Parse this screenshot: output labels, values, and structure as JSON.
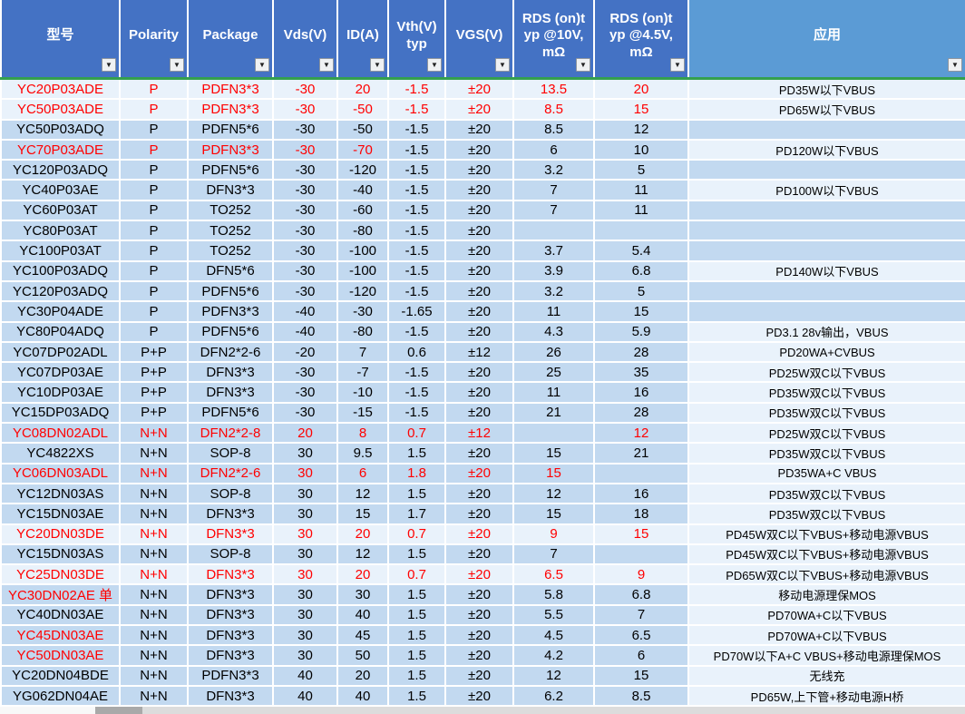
{
  "colors": {
    "header_bg": "#4472C4",
    "header_app_bg": "#5B9BD5",
    "row_bg": "#C2D9F0",
    "row_light_bg": "#E9F2FB",
    "grid_line": "#FFFFFF",
    "header_divider_green": "#34A04E",
    "red_text": "#FF0000",
    "black_text": "#000000"
  },
  "table": {
    "filter_icon": "▼",
    "column_keys": [
      "model",
      "polarity",
      "package",
      "vds",
      "id",
      "vth",
      "vgs",
      "rds10",
      "rds45",
      "app"
    ],
    "columns": [
      {
        "key": "model",
        "label": "型号"
      },
      {
        "key": "polarity",
        "label": "Polarity"
      },
      {
        "key": "package",
        "label": "Package"
      },
      {
        "key": "vds",
        "label": "Vds(V)"
      },
      {
        "key": "id",
        "label": "ID(A)"
      },
      {
        "key": "vth",
        "label": "Vth(V)\ntyp"
      },
      {
        "key": "vgs",
        "label": "VGS(V)"
      },
      {
        "key": "rds10",
        "label": "RDS (on)t\nyp @10V,\nmΩ"
      },
      {
        "key": "rds45",
        "label": "RDS (on)t\nyp @4.5V,\nmΩ"
      },
      {
        "key": "app",
        "label": "应用"
      }
    ],
    "rows": [
      {
        "model": "YC20P03ADE",
        "polarity": "P",
        "package": "PDFN3*3",
        "vds": "-30",
        "id": "20",
        "vth": "-1.5",
        "vgs": "±20",
        "rds10": "13.5",
        "rds45": "20",
        "app": "PD35W以下VBUS",
        "red": [
          0,
          1,
          2,
          3,
          4,
          5,
          6,
          7,
          8
        ],
        "light": true
      },
      {
        "model": "YC50P03ADE",
        "polarity": "P",
        "package": "PDFN3*3",
        "vds": "-30",
        "id": "-50",
        "vth": "-1.5",
        "vgs": "±20",
        "rds10": "8.5",
        "rds45": "15",
        "app": "PD65W以下VBUS",
        "red": [
          0,
          1,
          2,
          3,
          4,
          5,
          6,
          7,
          8
        ],
        "light": true
      },
      {
        "model": "YC50P03ADQ",
        "polarity": "P",
        "package": "PDFN5*6",
        "vds": "-30",
        "id": "-50",
        "vth": "-1.5",
        "vgs": "±20",
        "rds10": "8.5",
        "rds45": "12",
        "app": "",
        "red": [],
        "light": false
      },
      {
        "model": "YC70P03ADE",
        "polarity": "P",
        "package": "PDFN3*3",
        "vds": "-30",
        "id": "-70",
        "vth": "-1.5",
        "vgs": "±20",
        "rds10": "6",
        "rds45": "10",
        "app": "PD120W以下VBUS",
        "red": [
          0,
          1,
          2,
          3,
          4
        ],
        "light": false
      },
      {
        "model": "YC120P03ADQ",
        "polarity": "P",
        "package": "PDFN5*6",
        "vds": "-30",
        "id": "-120",
        "vth": "-1.5",
        "vgs": "±20",
        "rds10": "3.2",
        "rds45": "5",
        "app": "",
        "red": [],
        "light": false
      },
      {
        "model": "YC40P03AE",
        "polarity": "P",
        "package": "DFN3*3",
        "vds": "-30",
        "id": "-40",
        "vth": "-1.5",
        "vgs": "±20",
        "rds10": "7",
        "rds45": "11",
        "app": "PD100W以下VBUS",
        "red": [],
        "light": false
      },
      {
        "model": "YC60P03AT",
        "polarity": "P",
        "package": "TO252",
        "vds": "-30",
        "id": "-60",
        "vth": "-1.5",
        "vgs": "±20",
        "rds10": "7",
        "rds45": "11",
        "app": "",
        "red": [],
        "light": false
      },
      {
        "model": "YC80P03AT",
        "polarity": "P",
        "package": "TO252",
        "vds": "-30",
        "id": "-80",
        "vth": "-1.5",
        "vgs": "±20",
        "rds10": "",
        "rds45": "",
        "app": "",
        "red": [],
        "light": false
      },
      {
        "model": "YC100P03AT",
        "polarity": "P",
        "package": "TO252",
        "vds": "-30",
        "id": "-100",
        "vth": "-1.5",
        "vgs": "±20",
        "rds10": "3.7",
        "rds45": "5.4",
        "app": "",
        "red": [],
        "light": false
      },
      {
        "model": "YC100P03ADQ",
        "polarity": "P",
        "package": "DFN5*6",
        "vds": "-30",
        "id": "-100",
        "vth": "-1.5",
        "vgs": "±20",
        "rds10": "3.9",
        "rds45": "6.8",
        "app": "PD140W以下VBUS",
        "red": [],
        "light": false
      },
      {
        "model": "YC120P03ADQ",
        "polarity": "P",
        "package": "PDFN5*6",
        "vds": "-30",
        "id": "-120",
        "vth": "-1.5",
        "vgs": "±20",
        "rds10": "3.2",
        "rds45": "5",
        "app": "",
        "red": [],
        "light": false
      },
      {
        "model": "YC30P04ADE",
        "polarity": "P",
        "package": "PDFN3*3",
        "vds": "-40",
        "id": "-30",
        "vth": "-1.65",
        "vgs": "±20",
        "rds10": "11",
        "rds45": "15",
        "app": "",
        "red": [],
        "light": false
      },
      {
        "model": "YC80P04ADQ",
        "polarity": "P",
        "package": "PDFN5*6",
        "vds": "-40",
        "id": "-80",
        "vth": "-1.5",
        "vgs": "±20",
        "rds10": "4.3",
        "rds45": "5.9",
        "app": "PD3.1 28v输出，VBUS",
        "red": [],
        "light": false
      },
      {
        "model": "YC07DP02ADL",
        "polarity": "P+P",
        "package": "DFN2*2-6",
        "vds": "-20",
        "id": "7",
        "vth": "0.6",
        "vgs": "±12",
        "rds10": "26",
        "rds45": "28",
        "app": "PD20WA+CVBUS",
        "red": [],
        "light": false
      },
      {
        "model": "YC07DP03AE",
        "polarity": "P+P",
        "package": "DFN3*3",
        "vds": "-30",
        "id": "-7",
        "vth": "-1.5",
        "vgs": "±20",
        "rds10": "25",
        "rds45": "35",
        "app": "PD25W双C以下VBUS",
        "red": [],
        "light": false
      },
      {
        "model": "YC10DP03AE",
        "polarity": "P+P",
        "package": "DFN3*3",
        "vds": "-30",
        "id": "-10",
        "vth": "-1.5",
        "vgs": "±20",
        "rds10": "11",
        "rds45": "16",
        "app": "PD35W双C以下VBUS",
        "red": [],
        "light": false
      },
      {
        "model": "YC15DP03ADQ",
        "polarity": "P+P",
        "package": "PDFN5*6",
        "vds": "-30",
        "id": "-15",
        "vth": "-1.5",
        "vgs": "±20",
        "rds10": "21",
        "rds45": "28",
        "app": "PD35W双C以下VBUS",
        "red": [],
        "light": false
      },
      {
        "model": "YC08DN02ADL",
        "polarity": "N+N",
        "package": "DFN2*2-8",
        "vds": "20",
        "id": "8",
        "vth": "0.7",
        "vgs": "±12",
        "rds10": "",
        "rds45": "12",
        "app": "PD25W双C以下VBUS",
        "red": [
          0,
          1,
          2,
          3,
          4,
          5,
          6,
          7,
          8
        ],
        "light": false
      },
      {
        "model": "YC4822XS",
        "polarity": "N+N",
        "package": "SOP-8",
        "vds": "30",
        "id": "9.5",
        "vth": "1.5",
        "vgs": "±20",
        "rds10": "15",
        "rds45": "21",
        "app": "PD35W双C以下VBUS",
        "red": [],
        "light": false
      },
      {
        "model": "YC06DN03ADL",
        "polarity": "N+N",
        "package": "DFN2*2-6",
        "vds": "30",
        "id": "6",
        "vth": "1.8",
        "vgs": "±20",
        "rds10": "15",
        "rds45": "",
        "app": "PD35WA+C VBUS",
        "red": [
          0,
          1,
          2,
          3,
          4,
          5,
          6,
          7,
          8
        ],
        "light": false
      },
      {
        "model": "YC12DN03AS",
        "polarity": "N+N",
        "package": "SOP-8",
        "vds": "30",
        "id": "12",
        "vth": "1.5",
        "vgs": "±20",
        "rds10": "12",
        "rds45": "16",
        "app": "PD35W双C以下VBUS",
        "red": [],
        "light": false
      },
      {
        "model": "YC15DN03AE",
        "polarity": "N+N",
        "package": "DFN3*3",
        "vds": "30",
        "id": "15",
        "vth": "1.7",
        "vgs": "±20",
        "rds10": "15",
        "rds45": "18",
        "app": "PD35W双C以下VBUS",
        "red": [],
        "light": false
      },
      {
        "model": "YC20DN03DE",
        "polarity": "N+N",
        "package": "DFN3*3",
        "vds": "30",
        "id": "20",
        "vth": "0.7",
        "vgs": "±20",
        "rds10": "9",
        "rds45": "15",
        "app": "PD45W双C以下VBUS+移动电源VBUS",
        "red": [
          0,
          1,
          2,
          3,
          4,
          5,
          6,
          7,
          8
        ],
        "light": true
      },
      {
        "model": "YC15DN03AS",
        "polarity": "N+N",
        "package": "SOP-8",
        "vds": "30",
        "id": "12",
        "vth": "1.5",
        "vgs": "±20",
        "rds10": "7",
        "rds45": "",
        "app": "PD45W双C以下VBUS+移动电源VBUS",
        "red": [],
        "light": false
      },
      {
        "model": "YC25DN03DE",
        "polarity": "N+N",
        "package": "DFN3*3",
        "vds": "30",
        "id": "20",
        "vth": "0.7",
        "vgs": "±20",
        "rds10": "6.5",
        "rds45": "9",
        "app": "PD65W双C以下VBUS+移动电源VBUS",
        "red": [
          0,
          1,
          2,
          3,
          4,
          5,
          6,
          7,
          8
        ],
        "light": true
      },
      {
        "model": "YC30DN02AE 单",
        "polarity": "N+N",
        "package": "DFN3*3",
        "vds": "30",
        "id": "30",
        "vth": "1.5",
        "vgs": "±20",
        "rds10": "5.8",
        "rds45": "6.8",
        "app": "移动电源理保MOS",
        "red": [
          0
        ],
        "light": false
      },
      {
        "model": "YC40DN03AE",
        "polarity": "N+N",
        "package": "DFN3*3",
        "vds": "30",
        "id": "40",
        "vth": "1.5",
        "vgs": "±20",
        "rds10": "5.5",
        "rds45": "7",
        "app": "PD70WA+C以下VBUS",
        "red": [],
        "light": false
      },
      {
        "model": "YC45DN03AE",
        "polarity": "N+N",
        "package": "DFN3*3",
        "vds": "30",
        "id": "45",
        "vth": "1.5",
        "vgs": "±20",
        "rds10": "4.5",
        "rds45": "6.5",
        "app": "PD70WA+C以下VBUS",
        "red": [
          0
        ],
        "light": false
      },
      {
        "model": "YC50DN03AE",
        "polarity": "N+N",
        "package": "DFN3*3",
        "vds": "30",
        "id": "50",
        "vth": "1.5",
        "vgs": "±20",
        "rds10": "4.2",
        "rds45": "6",
        "app": "PD70W以下A+C VBUS+移动电源理保MOS",
        "red": [
          0
        ],
        "light": false
      },
      {
        "model": "YC20DN04BDE",
        "polarity": "N+N",
        "package": "PDFN3*3",
        "vds": "40",
        "id": "20",
        "vth": "1.5",
        "vgs": "±20",
        "rds10": "12",
        "rds45": "15",
        "app": "无线充",
        "red": [],
        "light": false
      },
      {
        "model": "YG062DN04AE",
        "polarity": "N+N",
        "package": "DFN3*3",
        "vds": "40",
        "id": "40",
        "vth": "1.5",
        "vgs": "±20",
        "rds10": "6.2",
        "rds45": "8.5",
        "app": "PD65W,上下管+移动电源H桥",
        "red": [],
        "light": false
      }
    ]
  }
}
